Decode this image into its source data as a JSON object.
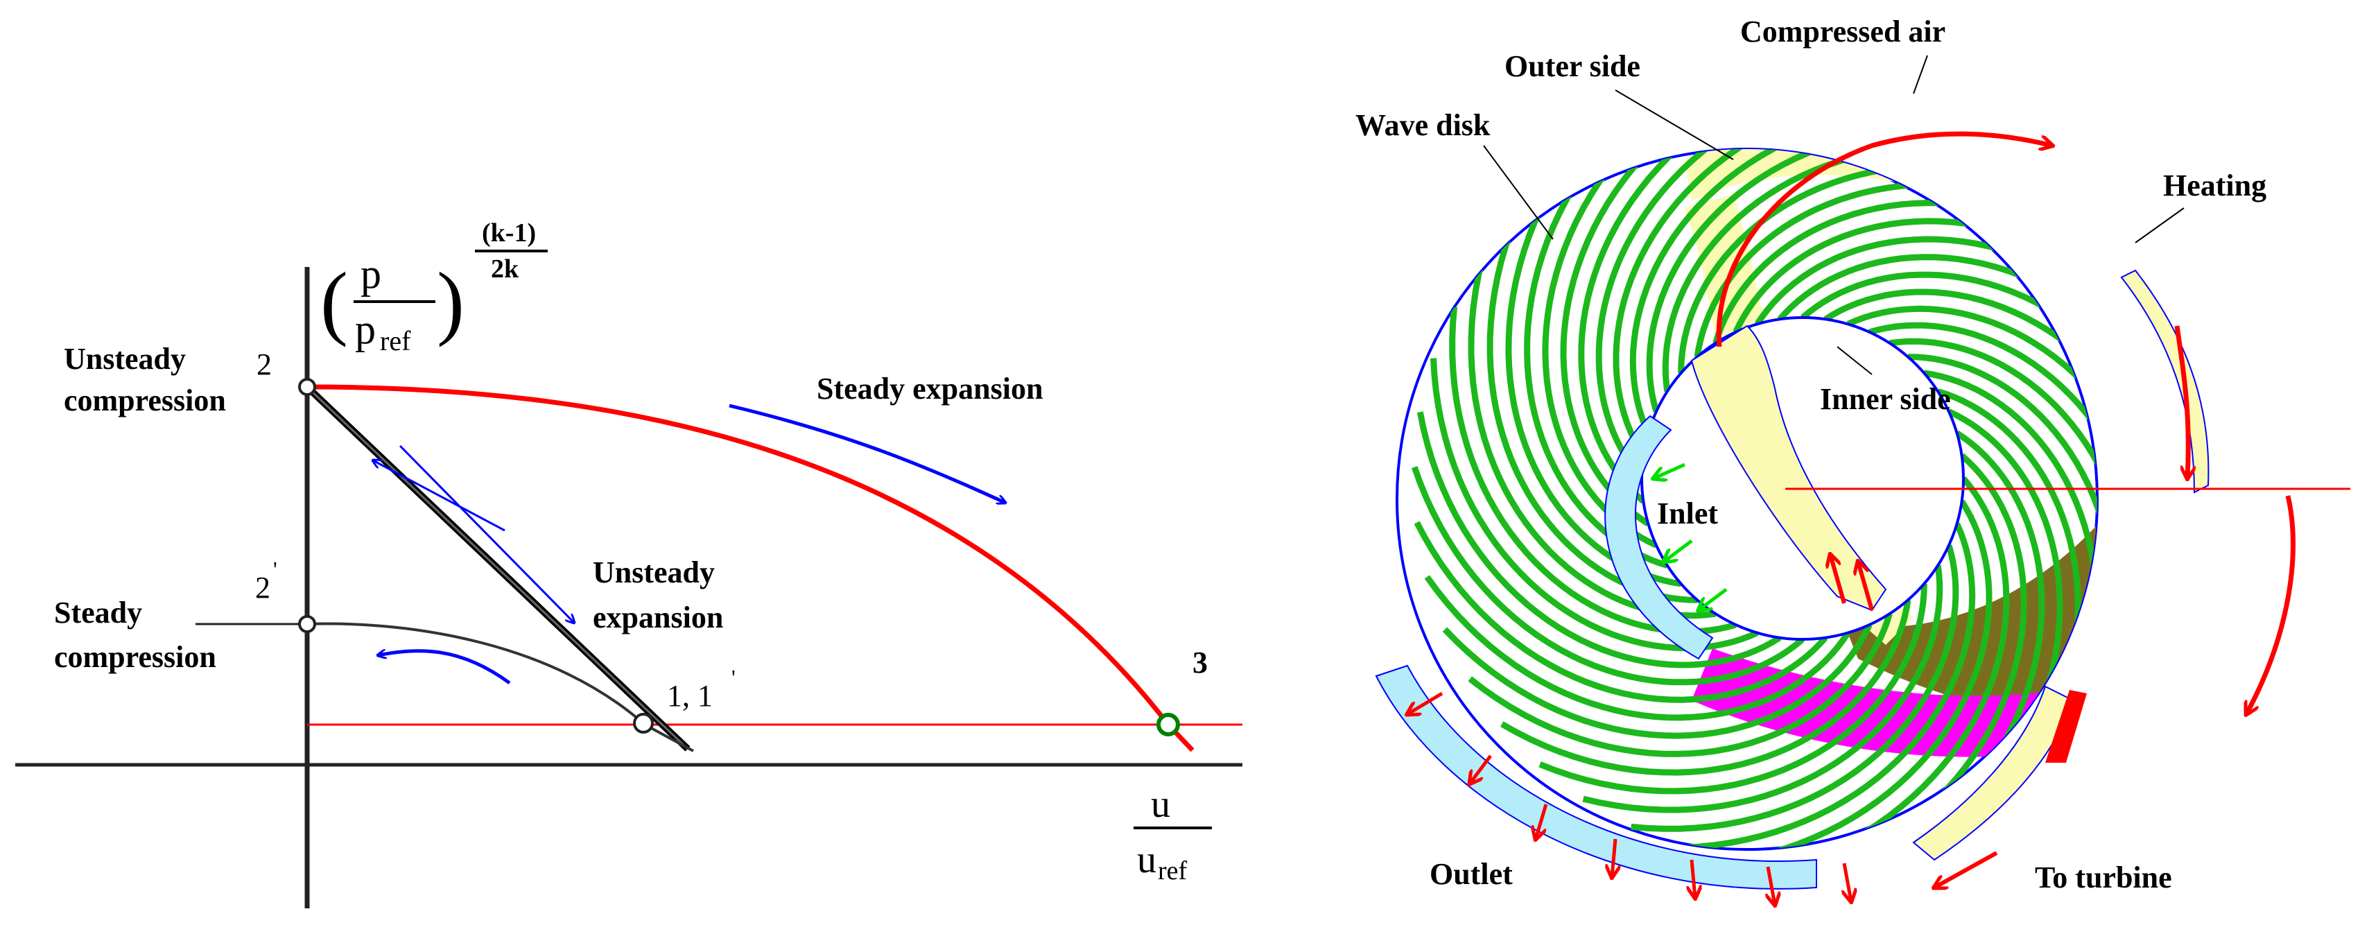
{
  "left_diagram": {
    "y_axis_label": {
      "p": "p",
      "p_ref": "p",
      "ref_sub": "ref",
      "exponent_num": "(k-1)",
      "exponent_den": "2k"
    },
    "x_axis_label": {
      "u": "u",
      "u_ref": "u",
      "ref_sub": "ref"
    },
    "points": {
      "p2": "2",
      "p2prime": "2",
      "p2prime_mark": "'",
      "p11prime": "1, 1",
      "p11prime_mark": "'",
      "p3": "3"
    },
    "labels": {
      "unsteady_compression_1": "Unsteady",
      "unsteady_compression_2": "compression",
      "steady_compression_1": "Steady",
      "steady_compression_2": "compression",
      "steady_expansion": "Steady expansion",
      "unsteady_expansion_1": "Unsteady",
      "unsteady_expansion_2": "expansion"
    },
    "colors": {
      "steady_expansion": "#ff0000",
      "arrows": "#0000ff",
      "point3": "#008000"
    }
  },
  "right_diagram": {
    "labels": {
      "compressed_air": "Compressed air",
      "outer_side": "Outer side",
      "wave_disk": "Wave disk",
      "heating": "Heating",
      "inner_side": "Inner side",
      "inlet": "Inlet",
      "outlet": "Outlet",
      "to_turbine": "To turbine"
    },
    "colors": {
      "channel": "#1cb81c",
      "disk_outline": "#0000ff",
      "compressed_band": "#fafab4",
      "inlet_outlet": "#b4ecfa",
      "hot_zone": "#7a6e1e",
      "magenta_zone": "#ff00ff",
      "flow_arrows": "#ff0000",
      "inlet_arrows": "#00e000"
    }
  }
}
